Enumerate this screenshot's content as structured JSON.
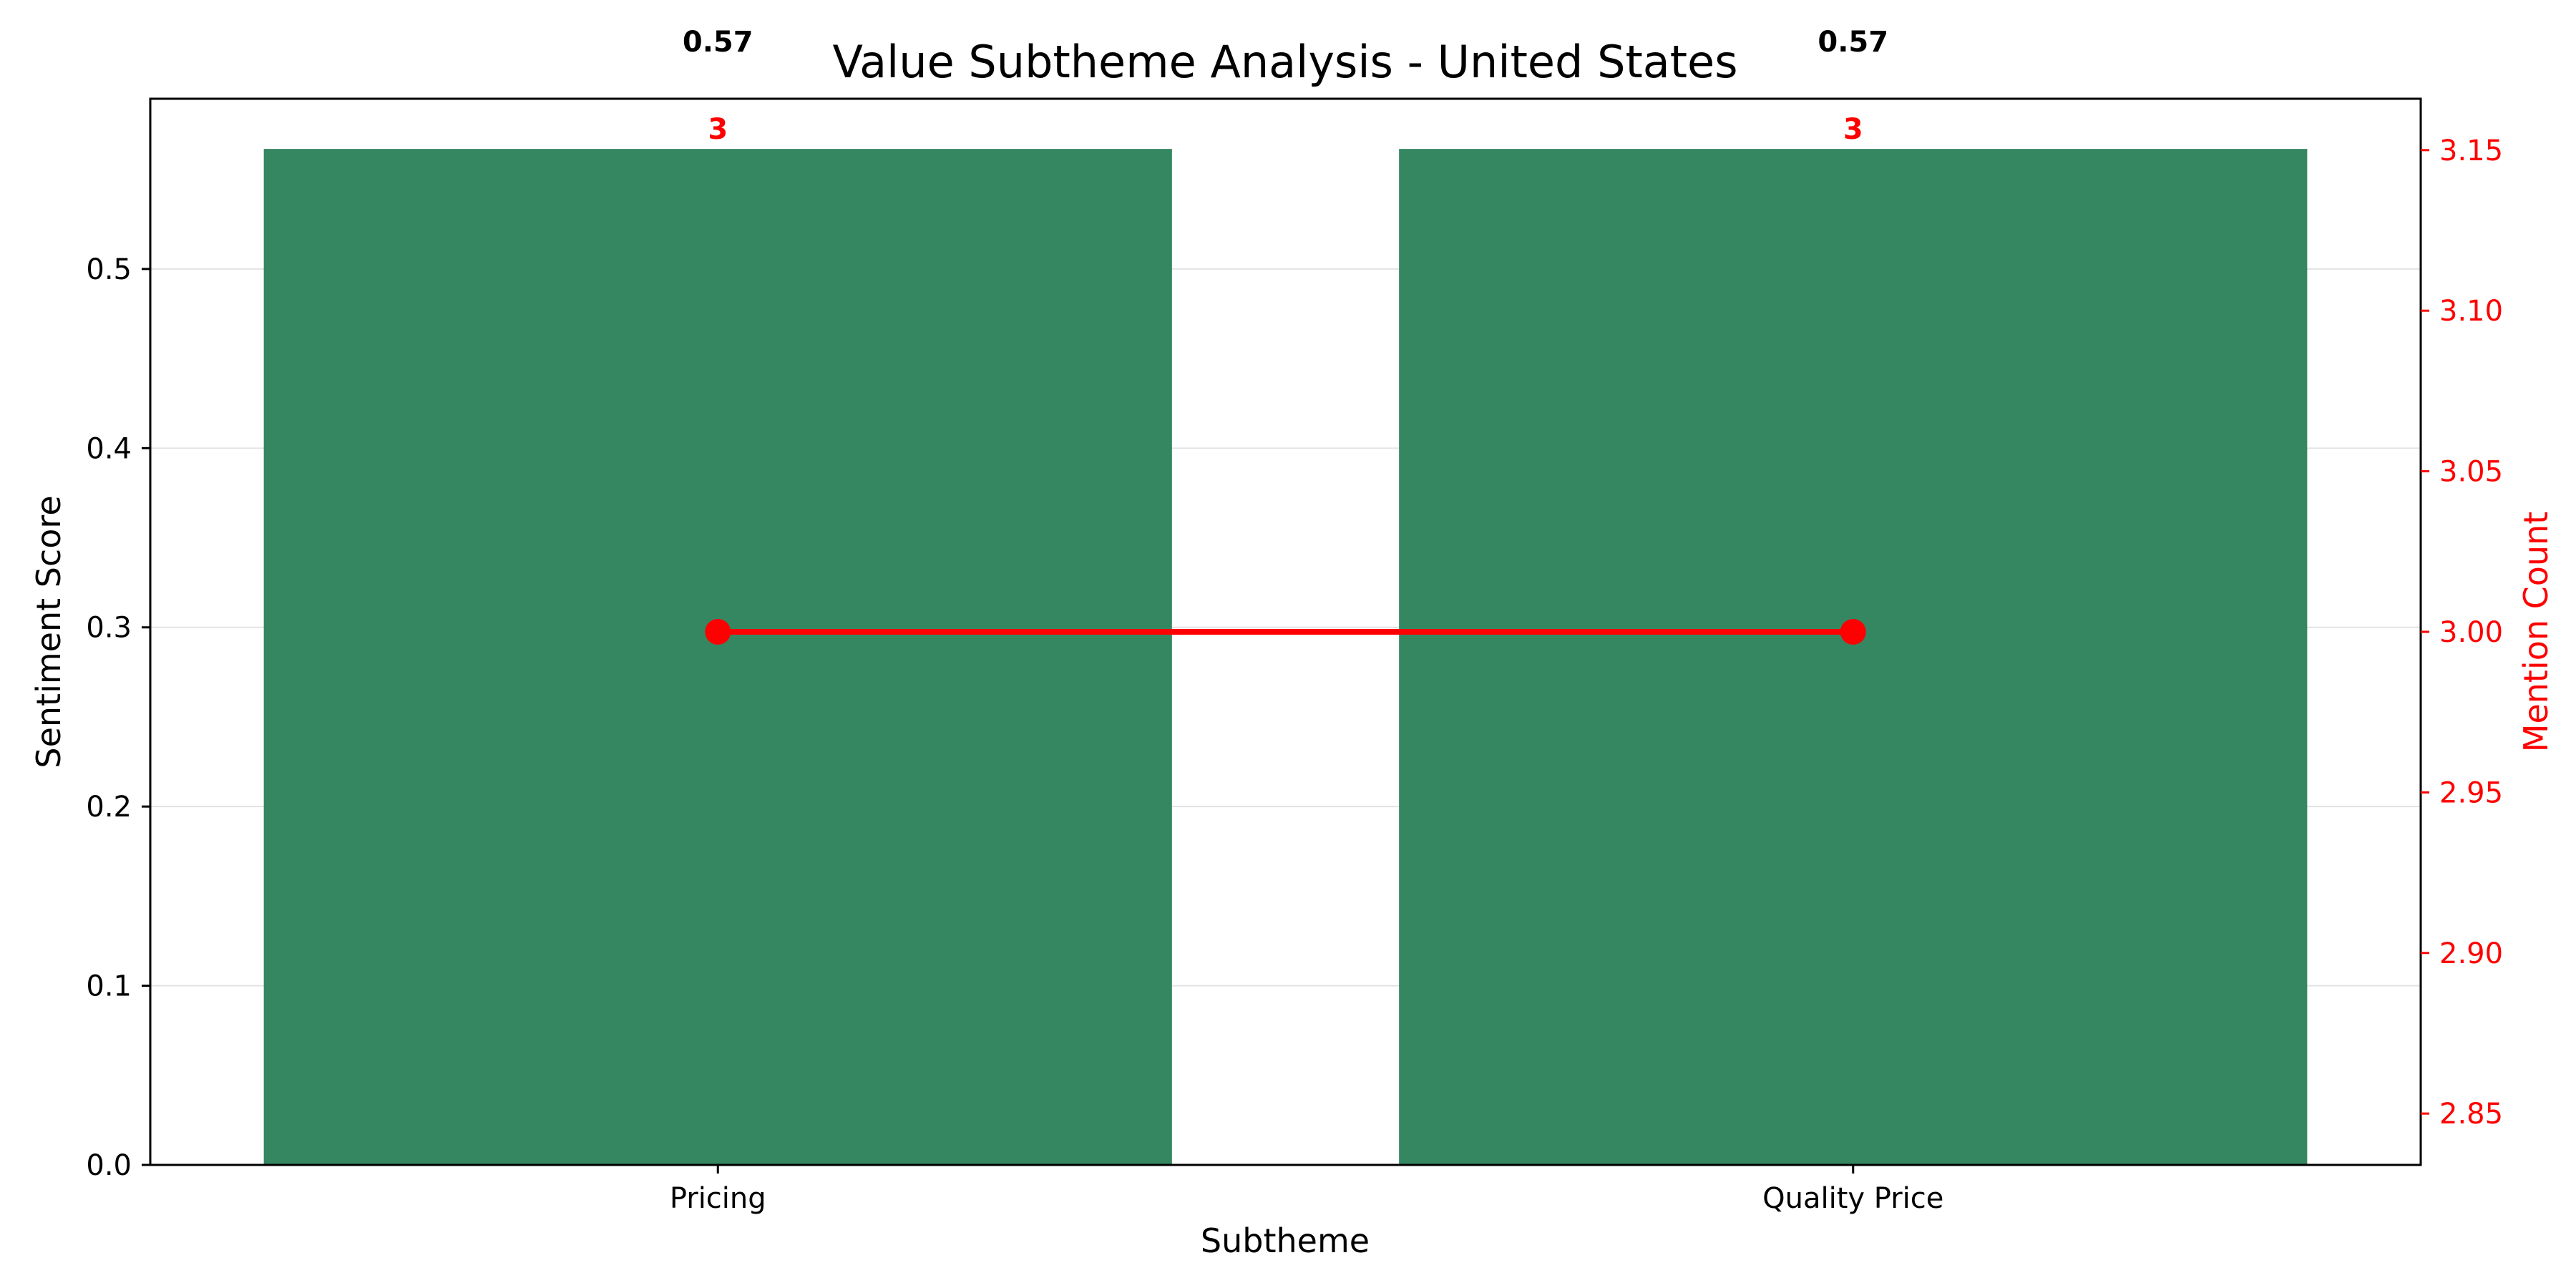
{
  "chart_data": {
    "type": "bar",
    "title": "Value Subtheme Analysis - United States",
    "xlabel": "Subtheme",
    "ylabel": "Sentiment Score",
    "y2label": "Mention Count",
    "categories": [
      "Pricing",
      "Quality Price"
    ],
    "values": [
      0.567,
      0.567
    ],
    "value_labels": [
      "0.57",
      "0.57"
    ],
    "ylim": [
      0,
      0.595
    ],
    "yticks": [
      "0.0",
      "0.1",
      "0.2",
      "0.3",
      "0.4",
      "0.5"
    ],
    "secondary": {
      "type": "line",
      "values": [
        3,
        3
      ],
      "value_labels": [
        "3",
        "3"
      ],
      "ylim": [
        2.834,
        3.166
      ],
      "yticks": [
        "2.85",
        "2.90",
        "2.95",
        "3.00",
        "3.05",
        "3.10",
        "3.15"
      ]
    },
    "grid": true,
    "colors": {
      "bar": "#358762",
      "line": "#ff0000",
      "text": "#000000"
    }
  }
}
